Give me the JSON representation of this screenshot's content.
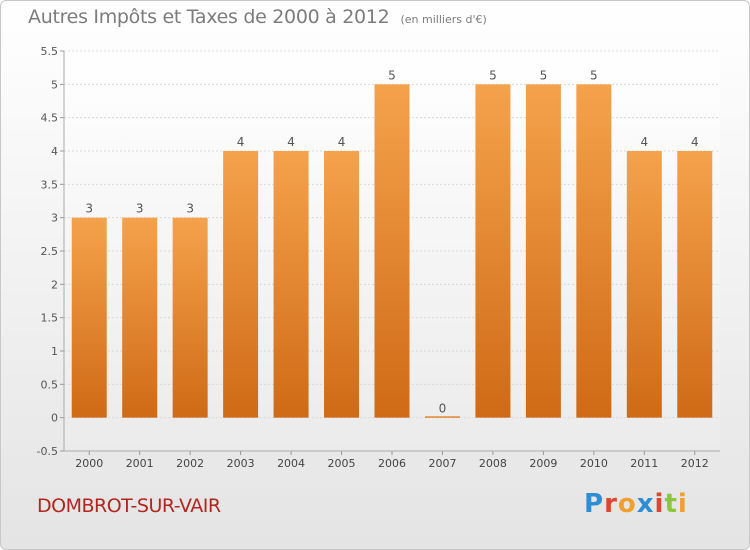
{
  "title": "Autres Impôts et Taxes de 2000 à 2012",
  "unit_label": "(en milliers d'€)",
  "place": "DOMBROT-SUR-VAIR",
  "logo": {
    "text": "Proxiti",
    "letters": [
      {
        "char": "P",
        "color": "#2d8ed6"
      },
      {
        "char": "r",
        "color": "#e0452f"
      },
      {
        "char": "o",
        "color": "#f0a030"
      },
      {
        "char": "x",
        "color": "#2d8ed6"
      },
      {
        "char": "i",
        "color": "#e0452f"
      },
      {
        "char": "t",
        "color": "#8cc63e"
      },
      {
        "char": "i",
        "color": "#f0a030"
      }
    ]
  },
  "chart_data": {
    "type": "bar",
    "title": "Autres Impôts et Taxes de 2000 à 2012",
    "categories": [
      "2000",
      "2001",
      "2002",
      "2003",
      "2004",
      "2005",
      "2006",
      "2007",
      "2008",
      "2009",
      "2010",
      "2011",
      "2012"
    ],
    "values": [
      3,
      3,
      3,
      4,
      4,
      4,
      5,
      0,
      5,
      5,
      5,
      4,
      4
    ],
    "data_labels": [
      "3",
      "3",
      "3",
      "4",
      "4",
      "4",
      "5",
      "0",
      "5",
      "5",
      "5",
      "4",
      "4"
    ],
    "ylim": [
      -0.5,
      5.5
    ],
    "yticks": [
      "-0.5",
      "0",
      "0.5",
      "1",
      "1.5",
      "2",
      "2.5",
      "3",
      "3.5",
      "4",
      "4.5",
      "5",
      "5.5"
    ],
    "ytick_values": [
      -0.5,
      0,
      0.5,
      1,
      1.5,
      2,
      2.5,
      3,
      3.5,
      4,
      4.5,
      5,
      5.5
    ],
    "grid": true,
    "bar_color": "#f5a24c",
    "bar_color_dark": "#cf6a16"
  }
}
